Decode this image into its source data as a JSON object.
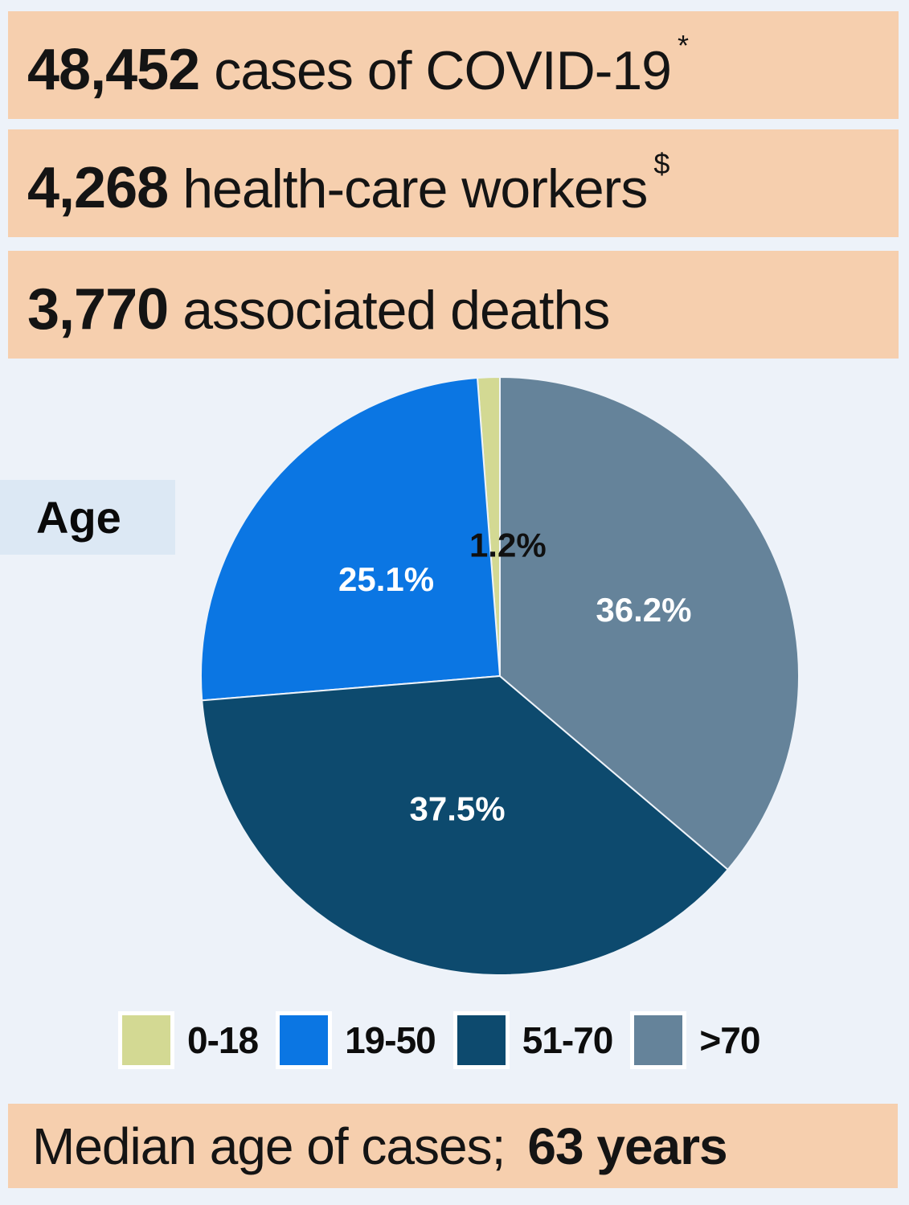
{
  "page": {
    "colors": {
      "background": "#edf2f9",
      "banner": "#f6cfae",
      "age_box": "#dce8f4",
      "slice_divider": "#eef3f9"
    }
  },
  "banners": [
    {
      "number": "48,452",
      "text": "cases of COVID-19",
      "superscript": "*"
    },
    {
      "number": "4,268",
      "text": "health-care workers",
      "superscript": "$"
    },
    {
      "number": "3,770",
      "text": "associated deaths",
      "superscript": ""
    }
  ],
  "chart_data": {
    "type": "pie",
    "title": "Age",
    "direction": "counterclockwise-from-top",
    "start_angle_deg": 0,
    "legend_position": "bottom",
    "slices": [
      {
        "label": "0-18",
        "value": 1.2,
        "color": "#d3d993",
        "label_color": "#101010",
        "value_label": "1.2%"
      },
      {
        "label": "19-50",
        "value": 25.1,
        "color": "#0b76e3",
        "label_color": "#ffffff",
        "value_label": "25.1%"
      },
      {
        "label": "51-70",
        "value": 37.5,
        "color": "#0d4a6e",
        "label_color": "#ffffff",
        "value_label": "37.5%"
      },
      {
        "label": ">70",
        "value": 36.2,
        "color": "#65839a",
        "label_color": "#ffffff",
        "value_label": "36.2%"
      }
    ]
  },
  "age_section": {
    "label": "Age"
  },
  "footer": {
    "label": "Median age of cases;",
    "value": "63 years"
  }
}
